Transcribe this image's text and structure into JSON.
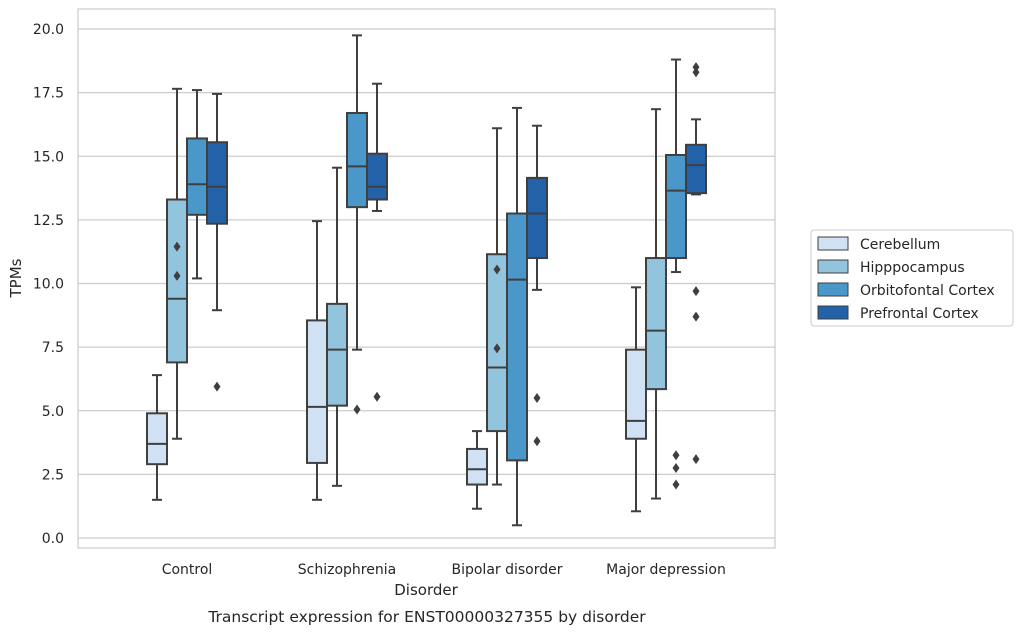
{
  "chart_data": {
    "type": "boxplot",
    "title": "Transcript expression for ENST00000327355 by disorder",
    "xlabel": "Disorder",
    "ylabel": "TPMs",
    "ylim": [
      -0.35,
      20.75
    ],
    "yticks": [
      "0.0",
      "2.5",
      "5.0",
      "7.5",
      "10.0",
      "12.5",
      "15.0",
      "17.5",
      "20.0"
    ],
    "ytick_values": [
      0,
      2.5,
      5,
      7.5,
      10,
      12.5,
      15,
      17.5,
      20
    ],
    "categories": [
      "Control",
      "Schizophrenia",
      "Bipolar disorder",
      "Major depression"
    ],
    "grid": "horizontal",
    "legend_placement": "right",
    "series": [
      {
        "name": "Cerebellum",
        "color": "#cfe1f2",
        "boxes": [
          {
            "low": 1.5,
            "q1": 2.9,
            "median": 3.7,
            "q3": 4.9,
            "high": 6.4,
            "outliers": []
          },
          {
            "low": 1.5,
            "q1": 2.95,
            "median": 5.15,
            "q3": 8.55,
            "high": 12.45,
            "outliers": []
          },
          {
            "low": 1.15,
            "q1": 2.1,
            "median": 2.7,
            "q3": 3.5,
            "high": 4.2,
            "outliers": []
          },
          {
            "low": 1.05,
            "q1": 3.9,
            "median": 4.6,
            "q3": 7.4,
            "high": 9.85,
            "outliers": []
          }
        ]
      },
      {
        "name": "Hipppocampus",
        "color": "#93c4de",
        "boxes": [
          {
            "low": 3.9,
            "q1": 6.9,
            "median": 9.4,
            "q3": 13.3,
            "high": 17.65,
            "outliers": [
              11.45,
              10.3
            ]
          },
          {
            "low": 2.05,
            "q1": 5.2,
            "median": 7.4,
            "q3": 9.2,
            "high": 14.55,
            "outliers": []
          },
          {
            "low": 2.1,
            "q1": 4.2,
            "median": 6.7,
            "q3": 11.15,
            "high": 16.1,
            "outliers": [
              10.55,
              7.45
            ]
          },
          {
            "low": 1.55,
            "q1": 5.85,
            "median": 8.15,
            "q3": 11.0,
            "high": 16.85,
            "outliers": []
          }
        ]
      },
      {
        "name": "Orbitofontal Cortex",
        "color": "#4a98c9",
        "boxes": [
          {
            "low": 10.2,
            "q1": 12.7,
            "median": 13.9,
            "q3": 15.7,
            "high": 17.6,
            "outliers": []
          },
          {
            "low": 7.4,
            "q1": 13.0,
            "median": 14.6,
            "q3": 16.7,
            "high": 19.75,
            "outliers": [
              5.05
            ]
          },
          {
            "low": 0.5,
            "q1": 3.05,
            "median": 10.15,
            "q3": 12.75,
            "high": 16.9,
            "outliers": []
          },
          {
            "low": 10.45,
            "q1": 11.0,
            "median": 13.65,
            "q3": 15.05,
            "high": 18.8,
            "outliers": [
              3.25,
              2.75,
              2.1
            ]
          }
        ]
      },
      {
        "name": "Prefrontal Cortex",
        "color": "#2362a8",
        "boxes": [
          {
            "low": 8.95,
            "q1": 12.35,
            "median": 13.8,
            "q3": 15.55,
            "high": 17.45,
            "outliers": [
              5.95
            ]
          },
          {
            "low": 12.85,
            "q1": 13.3,
            "median": 13.8,
            "q3": 15.1,
            "high": 17.85,
            "outliers": [
              5.55
            ]
          },
          {
            "low": 9.75,
            "q1": 11.0,
            "median": 12.75,
            "q3": 14.15,
            "high": 16.2,
            "outliers": [
              5.5,
              3.8
            ]
          },
          {
            "low": 13.5,
            "q1": 13.55,
            "median": 14.65,
            "q3": 15.45,
            "high": 16.45,
            "outliers": [
              18.5,
              18.3,
              9.7,
              8.7,
              3.1
            ]
          }
        ]
      }
    ]
  }
}
